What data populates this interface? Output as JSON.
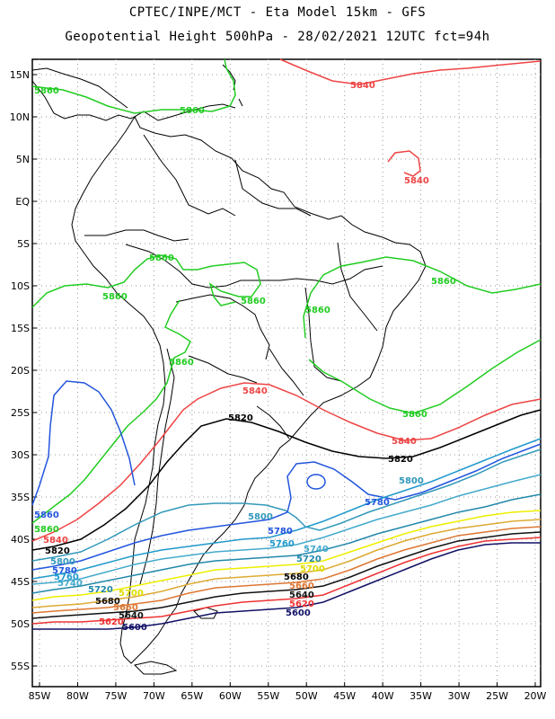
{
  "header": {
    "line1": "CPTEC/INPE/MCT -  Eta Model 15km - GFS",
    "line2": "Geopotential Height 500hPa - 28/02/2021 12UTC fct=94h"
  },
  "axes": {
    "lat_labels": [
      "15N",
      "10N",
      "5N",
      "EQ",
      "5S",
      "10S",
      "15S",
      "20S",
      "25S",
      "30S",
      "35S",
      "40S",
      "45S",
      "50S",
      "55S"
    ],
    "lon_labels": [
      "85W",
      "80W",
      "75W",
      "70W",
      "65W",
      "60W",
      "55W",
      "50W",
      "45W",
      "40W",
      "35W",
      "30W",
      "25W",
      "20W"
    ]
  },
  "colors": {
    "5860": "#22cc22",
    "5840": "#ee4444",
    "5820": "#000000",
    "5800": "#3399bb",
    "5780": "#2255dd",
    "5760": "#2299cc",
    "5740": "#44aacc",
    "5720": "#2288aa",
    "5700": "#eeee00",
    "5680": "#ddaa33",
    "5660": "#dd7733",
    "5640": "#111111",
    "5620": "#ee3333",
    "5600": "#111166",
    "coast": "#000000",
    "grid": "#888888"
  },
  "contour_labels": [
    {
      "text": "5860",
      "color": "5860",
      "pos": "a"
    },
    {
      "text": "5860",
      "color": "5860",
      "pos": "b"
    },
    {
      "text": "5860",
      "color": "5860",
      "pos": "c"
    },
    {
      "text": "5860",
      "color": "5860",
      "pos": "d"
    },
    {
      "text": "5860",
      "color": "5860",
      "pos": "e"
    },
    {
      "text": "5860",
      "color": "5860",
      "pos": "f"
    },
    {
      "text": "5860",
      "color": "5860",
      "pos": "g"
    },
    {
      "text": "5860",
      "color": "5860",
      "pos": "h"
    },
    {
      "text": "5860",
      "color": "5860",
      "pos": "i"
    },
    {
      "text": "5860",
      "color": "5860",
      "pos": "j"
    },
    {
      "text": "5860",
      "color": "5860",
      "pos": "k"
    },
    {
      "text": "5840",
      "color": "5840",
      "pos": "a"
    },
    {
      "text": "5840",
      "color": "5840",
      "pos": "b"
    },
    {
      "text": "5840",
      "color": "5840",
      "pos": "c"
    },
    {
      "text": "5840",
      "color": "5840",
      "pos": "d"
    },
    {
      "text": "5840",
      "color": "5840",
      "pos": "e"
    },
    {
      "text": "5820",
      "color": "5820",
      "pos": "a"
    },
    {
      "text": "5820",
      "color": "5820",
      "pos": "b"
    },
    {
      "text": "5820",
      "color": "5820",
      "pos": "c"
    },
    {
      "text": "5800",
      "color": "5800",
      "pos": "a"
    },
    {
      "text": "5800",
      "color": "5800",
      "pos": "b"
    },
    {
      "text": "5800",
      "color": "5800",
      "pos": "c"
    },
    {
      "text": "5780",
      "color": "5780",
      "pos": "a"
    },
    {
      "text": "5780",
      "color": "5780",
      "pos": "b"
    },
    {
      "text": "5780",
      "color": "5780",
      "pos": "c"
    },
    {
      "text": "5760",
      "color": "5760",
      "pos": "a"
    },
    {
      "text": "5760",
      "color": "5760",
      "pos": "b"
    },
    {
      "text": "5740",
      "color": "5740",
      "pos": "a"
    },
    {
      "text": "5740",
      "color": "5740",
      "pos": "b"
    },
    {
      "text": "5720",
      "color": "5720",
      "pos": "a"
    },
    {
      "text": "5720",
      "color": "5720",
      "pos": "b"
    },
    {
      "text": "5700",
      "color": "5700",
      "pos": "a"
    },
    {
      "text": "5700",
      "color": "5700",
      "pos": "b"
    },
    {
      "text": "5680",
      "color": "5680",
      "pos": "a"
    },
    {
      "text": "5680",
      "color": "5680",
      "pos": "b"
    },
    {
      "text": "5660",
      "color": "5660",
      "pos": "a"
    },
    {
      "text": "5660",
      "color": "5660",
      "pos": "b"
    },
    {
      "text": "5640",
      "color": "5640",
      "pos": "a"
    },
    {
      "text": "5640",
      "color": "5640",
      "pos": "b"
    },
    {
      "text": "5620",
      "color": "5620",
      "pos": "a"
    },
    {
      "text": "5620",
      "color": "5620",
      "pos": "b"
    },
    {
      "text": "5600",
      "color": "5600",
      "pos": "a"
    },
    {
      "text": "5600",
      "color": "5600",
      "pos": "b"
    }
  ]
}
